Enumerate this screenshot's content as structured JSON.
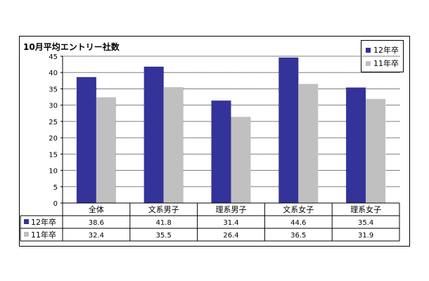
{
  "chart_data": {
    "type": "bar",
    "title": "10月平均エントリー社数",
    "categories": [
      "全体",
      "文系男子",
      "理系男子",
      "文系女子",
      "理系女子"
    ],
    "series": [
      {
        "name": "12年卒",
        "color": "#333399",
        "values": [
          38.6,
          41.8,
          31.4,
          44.6,
          35.4
        ],
        "labels": [
          "38.6",
          "41.8",
          "31.4",
          "44.6",
          "35.4"
        ]
      },
      {
        "name": "11年卒",
        "color": "#c0c0c0",
        "values": [
          32.4,
          35.5,
          26.4,
          36.5,
          31.9
        ],
        "labels": [
          "32.4",
          "35.5",
          "26.4",
          "36.5",
          "31.9"
        ]
      }
    ],
    "ylim": [
      0,
      45
    ],
    "yticks": [
      0,
      5,
      10,
      15,
      20,
      25,
      30,
      35,
      40,
      45
    ],
    "grid": true,
    "legend_position": "top-right",
    "data_table": true
  }
}
